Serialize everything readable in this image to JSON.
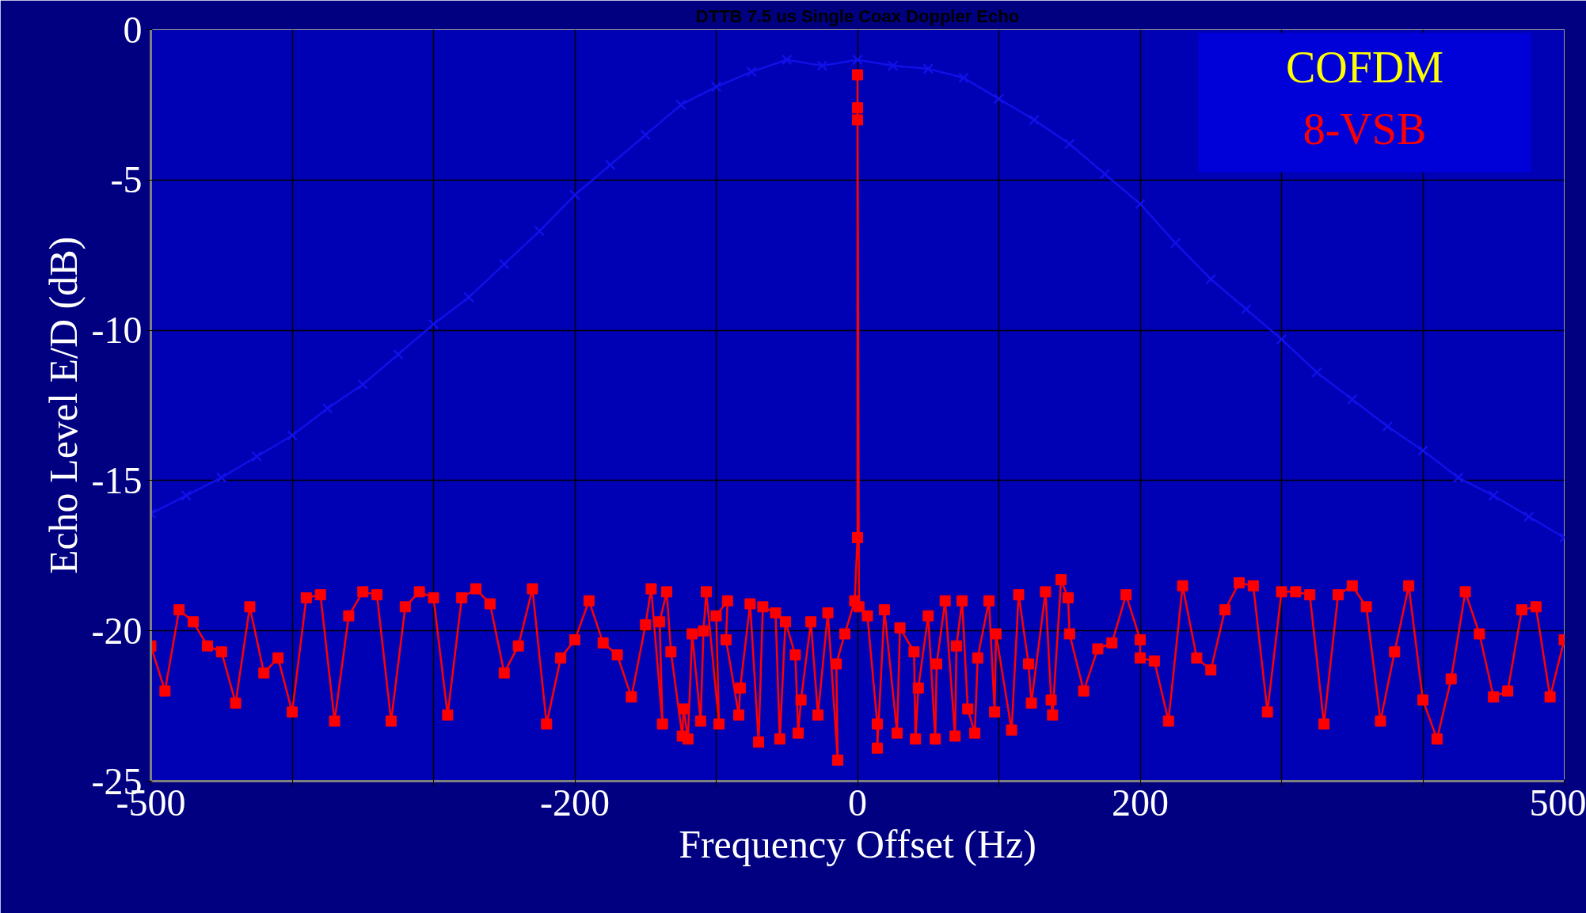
{
  "chart_data": {
    "type": "line",
    "title": "DTTB 7.5 us Single Coax Doppler Echo",
    "xlabel": "Frequency Offset (Hz)",
    "ylabel": "Echo Level E/D (dB)",
    "xlim": [
      -500,
      500
    ],
    "ylim": [
      -25,
      0
    ],
    "xticks": [
      -500,
      {
        "value": -400,
        "label": null
      },
      {
        "value": -300,
        "label": null
      },
      -200,
      {
        "value": -100,
        "label": null
      },
      0,
      {
        "value": 100,
        "label": null
      },
      200,
      {
        "value": 300,
        "label": null
      },
      {
        "value": 400,
        "label": null
      },
      500
    ],
    "yticks": [
      0,
      -5,
      -10,
      -15,
      -20,
      -25
    ],
    "grid": true,
    "legend": "top right",
    "series": [
      {
        "name": "COFDM",
        "color": "#1010e8",
        "marker": "cross",
        "x": [
          -500,
          -475,
          -450,
          -425,
          -400,
          -375,
          -350,
          -325,
          -300,
          -275,
          -250,
          -225,
          -200,
          -175,
          -150,
          -125,
          -100,
          -75,
          -50,
          -25,
          0,
          25,
          50,
          75,
          100,
          125,
          150,
          175,
          200,
          225,
          250,
          275,
          300,
          325,
          350,
          375,
          400,
          425,
          450,
          475,
          500
        ],
        "values": [
          -16.1,
          -15.5,
          -14.9,
          -14.2,
          -13.5,
          -12.6,
          -11.8,
          -10.8,
          -9.8,
          -8.9,
          -7.8,
          -6.7,
          -5.5,
          -4.5,
          -3.5,
          -2.5,
          -1.9,
          -1.4,
          -1.0,
          -1.2,
          -1.0,
          -1.2,
          -1.3,
          -1.6,
          -2.3,
          -3.0,
          -3.8,
          -4.8,
          -5.8,
          -7.1,
          -8.3,
          -9.3,
          -10.3,
          -11.4,
          -12.3,
          -13.2,
          -14.0,
          -14.9,
          -15.5,
          -16.2,
          -16.9
        ]
      },
      {
        "name": "8-VSB",
        "color": "#ff0000",
        "marker": "square",
        "x": [
          -500,
          -490,
          -480,
          -470,
          -460,
          -450,
          -440,
          -430,
          -420,
          -410,
          -400,
          -390,
          -380,
          -370,
          -360,
          -350,
          -340,
          -330,
          -320,
          -310,
          -300,
          -290,
          -280,
          -270,
          -260,
          -250,
          -240,
          -230,
          -220,
          -210,
          -200,
          -190,
          -180,
          -170,
          -160,
          -150,
          -146,
          -138,
          -140,
          -135,
          -132,
          -124,
          -123,
          -120,
          -117,
          -111,
          -109,
          -107,
          -98,
          -100,
          -92,
          -93,
          -84,
          -83,
          -76,
          -70,
          -67,
          -58,
          -55,
          -51,
          -44,
          -42,
          -40,
          -33,
          -28,
          -21,
          -14,
          -15,
          -9,
          -2,
          0,
          0,
          0,
          0,
          1,
          7,
          14,
          14,
          19,
          28,
          30,
          40,
          41,
          43,
          50,
          55,
          56,
          62,
          69,
          70,
          74,
          78,
          83,
          85,
          93,
          97,
          98,
          109,
          114,
          121,
          123,
          133,
          137,
          138,
          144,
          149,
          150,
          160,
          170,
          180,
          190,
          200,
          200,
          210,
          220,
          230,
          240,
          250,
          260,
          270,
          280,
          290,
          300,
          310,
          320,
          330,
          340,
          350,
          360,
          370,
          380,
          390,
          400,
          410,
          420,
          430,
          440,
          450,
          460,
          470,
          480,
          490,
          500
        ],
        "values": [
          -20.5,
          -22.0,
          -19.3,
          -19.7,
          -20.5,
          -20.7,
          -22.4,
          -19.2,
          -21.4,
          -20.9,
          -22.7,
          -18.9,
          -18.8,
          -23.0,
          -19.5,
          -18.7,
          -18.8,
          -23.0,
          -19.2,
          -18.7,
          -18.9,
          -22.8,
          -18.9,
          -18.6,
          -19.1,
          -21.4,
          -20.5,
          -18.6,
          -23.1,
          -20.9,
          -20.3,
          -19.0,
          -20.4,
          -20.8,
          -22.2,
          -19.8,
          -18.6,
          -23.1,
          -19.7,
          -18.7,
          -20.7,
          -23.5,
          -22.6,
          -23.6,
          -20.1,
          -23.0,
          -20.0,
          -18.7,
          -23.1,
          -19.5,
          -19.0,
          -20.3,
          -22.8,
          -21.9,
          -19.1,
          -23.7,
          -19.2,
          -19.4,
          -23.6,
          -19.7,
          -20.8,
          -23.4,
          -22.3,
          -19.7,
          -22.8,
          -19.4,
          -24.3,
          -21.1,
          -20.1,
          -19.0,
          -16.9,
          -3.0,
          -2.6,
          -1.5,
          -19.2,
          -19.5,
          -23.1,
          -23.9,
          -19.3,
          -23.4,
          -19.9,
          -20.7,
          -23.6,
          -21.9,
          -19.5,
          -23.6,
          -21.1,
          -19.0,
          -23.5,
          -20.5,
          -19.0,
          -22.6,
          -23.4,
          -20.9,
          -19.0,
          -22.7,
          -20.1,
          -23.3,
          -18.8,
          -21.1,
          -22.4,
          -18.7,
          -22.3,
          -22.8,
          -18.3,
          -18.9,
          -20.1,
          -22.0,
          -20.6,
          -20.4,
          -18.8,
          -20.3,
          -20.9,
          -21.0,
          -23.0,
          -18.5,
          -20.9,
          -21.3,
          -19.3,
          -18.4,
          -18.5,
          -22.7,
          -18.7,
          -18.7,
          -18.8,
          -23.1,
          -18.8,
          -18.5,
          -19.2,
          -23.0,
          -20.7,
          -18.5,
          -22.3,
          -23.6,
          -21.6,
          -18.7,
          -20.1,
          -22.2,
          -22.0,
          -19.3,
          -19.2,
          -22.2,
          -20.3
        ]
      }
    ]
  }
}
